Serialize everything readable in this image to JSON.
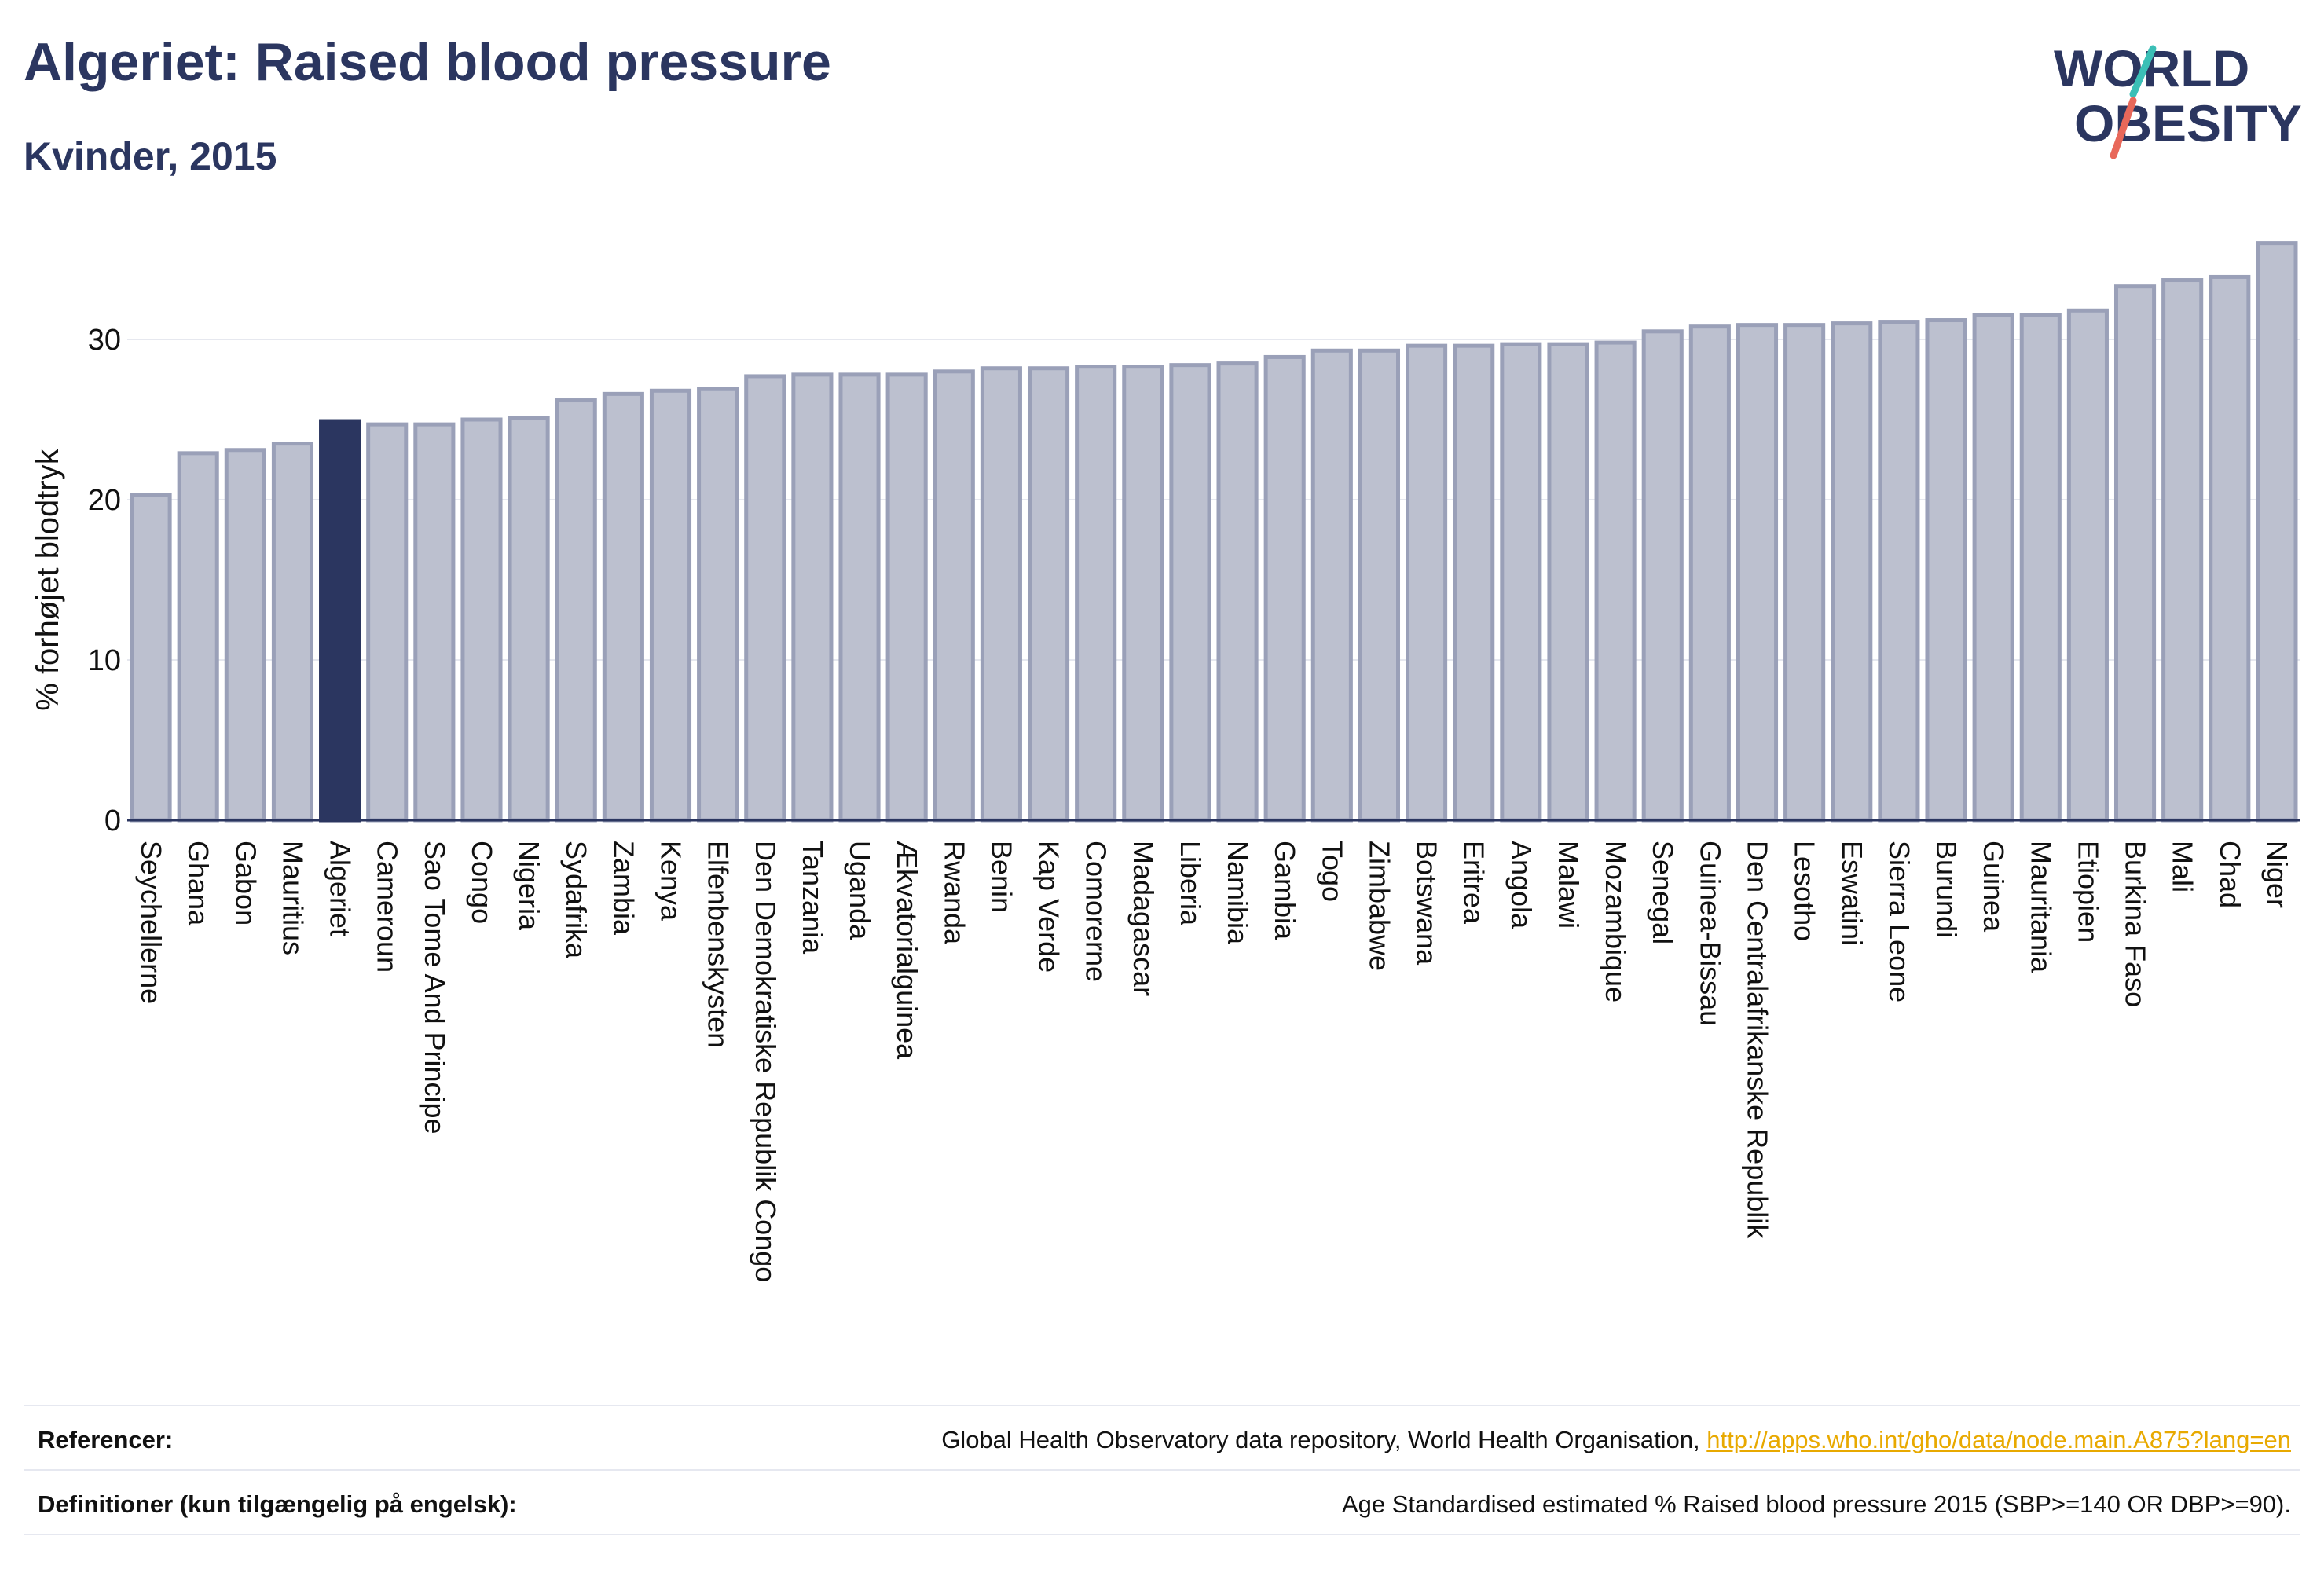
{
  "header": {
    "title": "Algeriet: Raised blood pressure",
    "subtitle": "Kvinder, 2015",
    "logo_line1": "WORLD",
    "logo_line2": "OBESITY"
  },
  "colors": {
    "bar": "#bcc0cf",
    "bar_stroke": "#9aa0b8",
    "highlight": "#2b3660",
    "grid": "#e6e8ef",
    "axis": "#2b3660",
    "logo_teal": "#3bbfb6",
    "logo_red": "#e8685a"
  },
  "chart_data": {
    "type": "bar",
    "ylabel": "% forhøjet blodtryk",
    "ylim": [
      0,
      37
    ],
    "yticks": [
      0,
      10,
      20,
      30
    ],
    "grid": true,
    "highlight": "Algeriet",
    "categories": [
      "Seychellerne",
      "Ghana",
      "Gabon",
      "Mauritius",
      "Algeriet",
      "Cameroun",
      "Sao Tome And Principe",
      "Congo",
      "Nigeria",
      "Sydafrika",
      "Zambia",
      "Kenya",
      "Elfenbenskysten",
      "Den Demokratiske Republik Congo",
      "Tanzania",
      "Uganda",
      "Ækvatorialguinea",
      "Rwanda",
      "Benin",
      "Kap Verde",
      "Comorerne",
      "Madagascar",
      "Liberia",
      "Namibia",
      "Gambia",
      "Togo",
      "Zimbabwe",
      "Botswana",
      "Eritrea",
      "Angola",
      "Malawi",
      "Mozambique",
      "Senegal",
      "Guinea-Bissau",
      "Den Centralafrikanske Republik",
      "Lesotho",
      "Eswatini",
      "Sierra Leone",
      "Burundi",
      "Guinea",
      "Mauritania",
      "Etiopien",
      "Burkina Faso",
      "Mali",
      "Chad",
      "Niger"
    ],
    "values": [
      20.3,
      22.9,
      23.1,
      23.5,
      24.9,
      24.7,
      24.7,
      25.0,
      25.1,
      26.2,
      26.6,
      26.8,
      26.9,
      27.7,
      27.8,
      27.8,
      27.8,
      28.0,
      28.2,
      28.2,
      28.3,
      28.3,
      28.4,
      28.5,
      28.9,
      29.3,
      29.3,
      29.6,
      29.6,
      29.7,
      29.7,
      29.8,
      30.5,
      30.8,
      30.9,
      30.9,
      31.0,
      31.1,
      31.2,
      31.5,
      31.5,
      31.8,
      33.3,
      33.7,
      33.9,
      36.0
    ]
  },
  "footer": {
    "references_label": "Referencer:",
    "references_text": "Global Health Observatory data repository, World Health Organisation, ",
    "references_link": "http://apps.who.int/gho/data/node.main.A875?lang=en",
    "definitions_label": "Definitioner (kun tilgængelig på engelsk):",
    "definitions_text": "Age Standardised estimated % Raised blood pressure 2015 (SBP>=140 OR DBP>=90)."
  }
}
